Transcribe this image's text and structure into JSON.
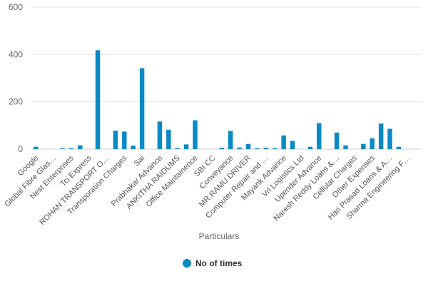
{
  "chart_data": {
    "type": "bar",
    "title": "",
    "xlabel": "Particulars",
    "ylabel": "",
    "ylim": [
      0,
      600
    ],
    "yticks": [
      "0",
      "200",
      "400",
      "600"
    ],
    "grid": true,
    "legend_position": "bottom-center",
    "accent_color": "#0a8ac4",
    "categories": [
      "Google",
      "",
      "Global Fibre Glas…",
      "",
      "Nest Enterprises",
      "",
      "Tci Express",
      "",
      "ROHAN TRANSPORT O…",
      "",
      "Transporation Charges",
      "",
      "Sai",
      "",
      "Prabhakar Advance",
      "",
      "ANKITHA RAIDUMS",
      "",
      "Office Maintainence",
      "",
      "SBI CC",
      "",
      "Conveyance",
      "",
      "MR.RAMU DRIVER",
      "",
      "Computer Repair and …",
      "",
      "Mayank Advance",
      "",
      "Vrl Logistics Ltd",
      "",
      "Upender Advance",
      "",
      "Naresh Reddy Loans &…",
      "",
      "Cellular Charges",
      "",
      "Other Expenses",
      "",
      "Hari Prasad Loans & A…",
      "",
      "Sharma Engineering F…",
      ""
    ],
    "series": [
      {
        "name": "No of times",
        "values": [
          10,
          0,
          0,
          3,
          4,
          16,
          0,
          418,
          0,
          78,
          74,
          15,
          342,
          0,
          117,
          82,
          4,
          20,
          122,
          0,
          0,
          6,
          77,
          7,
          22,
          4,
          6,
          4,
          58,
          35,
          0,
          10,
          110,
          0,
          70,
          16,
          0,
          22,
          46,
          108,
          86,
          10,
          0,
          0
        ]
      }
    ]
  }
}
